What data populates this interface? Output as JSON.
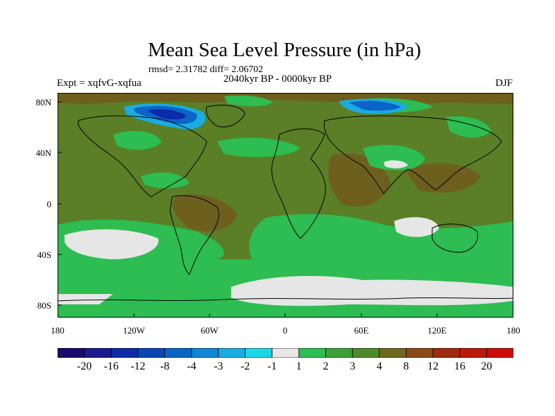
{
  "title": "Mean Sea Level Pressure (in hPa)",
  "stats": "rmsd= 2.31782  diff= 2.06702",
  "subtitle": "2040kyr BP - 0000kyr BP",
  "left_label": "Expt = xqfvG-xqfua",
  "right_label": "DJF",
  "lat_labels": [
    "80N",
    "40N",
    "0",
    "40S",
    "80S"
  ],
  "lon_labels": [
    "180",
    "120W",
    "60W",
    "0",
    "60E",
    "120E",
    "180"
  ],
  "colorbar": {
    "labels": [
      "-20",
      "-16",
      "-12",
      "-8",
      "-4",
      "-3",
      "-2",
      "-1",
      "1",
      "2",
      "3",
      "4",
      "8",
      "12",
      "16",
      "20"
    ],
    "colors": [
      "#1a0a6e",
      "#1c1a90",
      "#0d2aa8",
      "#0a45b8",
      "#0a64c8",
      "#0f86d6",
      "#1aace0",
      "#1fd6e6",
      "#e6e6e6",
      "#2dbd52",
      "#3c9f3a",
      "#4e8a2a",
      "#6d6a1e",
      "#8a4a18",
      "#a02a10",
      "#b81a0c",
      "#cc0a08"
    ]
  },
  "colors": {
    "land_outline": "#000000",
    "field_positive_low": "#2dbd52",
    "field_positive_mid": "#4e8a2a",
    "field_positive_high": "#6d6a1e",
    "field_neutral": "#e6e6e6",
    "field_negative": "#0a64c8"
  }
}
